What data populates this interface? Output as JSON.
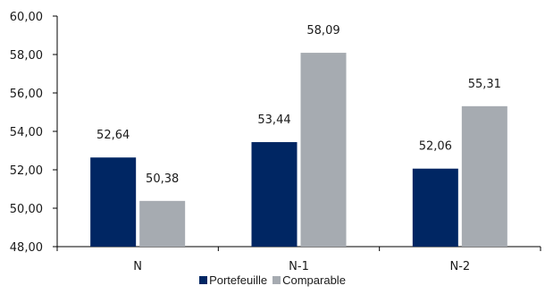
{
  "chart_data": {
    "type": "bar",
    "categories": [
      "N",
      "N-1",
      "N-2"
    ],
    "series": [
      {
        "name": "Portefeuille",
        "values": [
          52.64,
          53.44,
          52.06
        ],
        "labels": [
          "52,64",
          "53,44",
          "52,06"
        ],
        "color": "#002663"
      },
      {
        "name": "Comparable",
        "values": [
          50.38,
          58.09,
          55.31
        ],
        "labels": [
          "50,38",
          "58,09",
          "55,31"
        ],
        "color": "#a6abb1"
      }
    ],
    "ylim": [
      48,
      60
    ],
    "yticks": [
      48,
      50,
      52,
      54,
      56,
      58,
      60
    ],
    "ytick_labels": [
      "48,00",
      "50,00",
      "52,00",
      "54,00",
      "56,00",
      "58,00",
      "60,00"
    ],
    "grid": false,
    "legend_position": "bottom"
  }
}
